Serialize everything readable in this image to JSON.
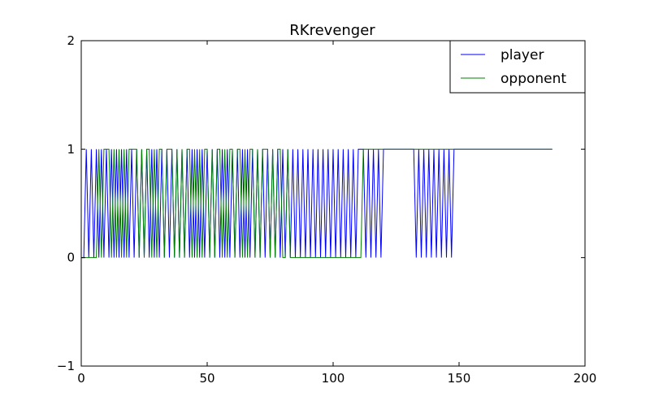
{
  "chart_data": {
    "type": "line",
    "title": "RKrevenger",
    "xlabel": "",
    "ylabel": "",
    "xlim": [
      0,
      200
    ],
    "ylim": [
      -1,
      2
    ],
    "x_ticks": [
      0,
      50,
      100,
      150,
      200
    ],
    "y_ticks": [
      -1,
      0,
      1,
      2
    ],
    "x_tick_labels": [
      "0",
      "50",
      "100",
      "150",
      "200"
    ],
    "y_tick_labels": [
      "−1",
      "0",
      "1",
      "2"
    ],
    "grid": false,
    "legend_position": "top-right",
    "series": [
      {
        "name": "player",
        "color": "#0000ff",
        "x": [
          0,
          1,
          2,
          3,
          4,
          5,
          6,
          7,
          8,
          9,
          10,
          11,
          12,
          13,
          14,
          15,
          16,
          17,
          18,
          19,
          20,
          21,
          22,
          23,
          24,
          25,
          26,
          27,
          28,
          29,
          30,
          31,
          32,
          33,
          34,
          35,
          36,
          37,
          38,
          39,
          40,
          41,
          42,
          43,
          44,
          45,
          46,
          47,
          48,
          49,
          50,
          51,
          52,
          53,
          54,
          55,
          56,
          57,
          58,
          59,
          60,
          61,
          62,
          63,
          64,
          65,
          66,
          67,
          68,
          69,
          70,
          71,
          72,
          73,
          74,
          75,
          76,
          77,
          78,
          79,
          80,
          81,
          82,
          83,
          84,
          85,
          86,
          87,
          88,
          89,
          90,
          91,
          92,
          93,
          94,
          95,
          96,
          97,
          98,
          99,
          100,
          101,
          102,
          103,
          104,
          105,
          106,
          107,
          108,
          109,
          110,
          111,
          112,
          113,
          114,
          115,
          116,
          117,
          118,
          119,
          120,
          121,
          122,
          123,
          124,
          125,
          126,
          127,
          128,
          129,
          130,
          131,
          132,
          133,
          134,
          135,
          136,
          137,
          138,
          139,
          140,
          141,
          142,
          143,
          144,
          145,
          146,
          147,
          148,
          149,
          150,
          151,
          152,
          153,
          154,
          155,
          156,
          157,
          158,
          159,
          160,
          161,
          162,
          163,
          164,
          165,
          166,
          167,
          168,
          169,
          170,
          171,
          172,
          173,
          174,
          175,
          176,
          177,
          178,
          179,
          180,
          181,
          182,
          183,
          184,
          185,
          186,
          187
        ],
        "y": [
          0,
          0,
          1,
          0,
          1,
          0,
          1,
          0,
          1,
          0,
          1,
          0,
          1,
          0,
          1,
          0,
          1,
          0,
          1,
          0,
          1,
          0,
          1,
          0,
          1,
          0,
          1,
          0,
          1,
          0,
          1,
          0,
          1,
          0,
          1,
          0,
          1,
          0,
          1,
          0,
          1,
          0,
          1,
          0,
          1,
          0,
          1,
          0,
          1,
          0,
          1,
          0,
          1,
          0,
          1,
          0,
          1,
          0,
          1,
          0,
          1,
          0,
          1,
          0,
          1,
          0,
          1,
          0,
          1,
          0,
          1,
          0,
          1,
          0,
          1,
          0,
          1,
          0,
          1,
          0,
          1,
          0,
          1,
          0,
          1,
          0,
          1,
          0,
          1,
          0,
          1,
          0,
          1,
          0,
          1,
          0,
          1,
          0,
          1,
          0,
          1,
          0,
          1,
          0,
          1,
          0,
          1,
          0,
          1,
          0,
          1,
          1,
          1,
          0,
          1,
          0,
          1,
          0,
          1,
          0,
          1,
          1,
          1,
          1,
          1,
          1,
          1,
          1,
          1,
          1,
          1,
          1,
          1,
          0,
          1,
          0,
          1,
          0,
          1,
          0,
          1,
          0,
          1,
          0,
          1,
          0,
          1,
          0,
          1,
          1,
          1,
          1,
          1,
          1,
          1,
          1,
          1,
          1,
          1,
          1,
          1,
          1,
          1,
          1,
          1,
          1,
          1,
          1,
          1,
          1,
          1,
          1,
          1,
          1,
          1,
          1,
          1,
          1,
          1,
          1,
          1,
          1,
          1,
          1,
          1,
          1,
          1,
          1
        ]
      },
      {
        "name": "opponent",
        "color": "#008000",
        "x": [
          0,
          1,
          2,
          3,
          4,
          5,
          6,
          7,
          8,
          9,
          10,
          11,
          12,
          13,
          14,
          15,
          16,
          17,
          18,
          19,
          20,
          21,
          22,
          23,
          24,
          25,
          26,
          27,
          28,
          29,
          30,
          31,
          32,
          33,
          34,
          35,
          36,
          37,
          38,
          39,
          40,
          41,
          42,
          43,
          44,
          45,
          46,
          47,
          48,
          49,
          50,
          51,
          52,
          53,
          54,
          55,
          56,
          57,
          58,
          59,
          60,
          61,
          62,
          63,
          64,
          65,
          66,
          67,
          68,
          69,
          70,
          71,
          72,
          73,
          74,
          75,
          76,
          77,
          78,
          79,
          80,
          81,
          82,
          83,
          84,
          85,
          86,
          87,
          88,
          89,
          90,
          91,
          92,
          93,
          94,
          95,
          96,
          97,
          98,
          99,
          100,
          101,
          102,
          103,
          104,
          105,
          106,
          107,
          108,
          109,
          110,
          111,
          112,
          113,
          114,
          115,
          116,
          117,
          118,
          119,
          120,
          121,
          122,
          123,
          124,
          125,
          126,
          127,
          128,
          129,
          130,
          131,
          132,
          133,
          134,
          135,
          136,
          137,
          138,
          139,
          140,
          141,
          142,
          143,
          144,
          145,
          146,
          147,
          148,
          149,
          150,
          151,
          152,
          153,
          154,
          155,
          156,
          157,
          158,
          159,
          160,
          161,
          162,
          163,
          164,
          165,
          166,
          167,
          168,
          169,
          170,
          171,
          172,
          173,
          174,
          175,
          176,
          177,
          178,
          179,
          180,
          181,
          182,
          183,
          184,
          185,
          186,
          187
        ],
        "y": [
          0,
          0,
          0,
          0,
          0,
          0,
          0,
          1,
          0,
          1,
          1,
          1,
          0,
          1,
          0,
          1,
          0,
          1,
          0,
          1,
          1,
          1,
          1,
          0,
          1,
          0,
          1,
          1,
          0,
          1,
          0,
          1,
          1,
          0,
          1,
          1,
          1,
          0,
          1,
          0,
          1,
          0,
          1,
          1,
          0,
          1,
          0,
          1,
          0,
          1,
          1,
          0,
          1,
          0,
          1,
          1,
          0,
          1,
          0,
          1,
          1,
          0,
          1,
          1,
          0,
          1,
          0,
          1,
          1,
          0,
          1,
          0,
          1,
          1,
          1,
          0,
          1,
          0,
          1,
          1,
          0,
          0,
          1,
          0,
          0,
          0,
          0,
          0,
          0,
          0,
          0,
          0,
          0,
          0,
          0,
          0,
          0,
          0,
          0,
          0,
          0,
          0,
          0,
          0,
          0,
          0,
          0,
          0,
          0,
          0,
          0,
          0,
          1,
          1,
          1,
          1,
          1,
          1,
          1,
          1,
          1,
          1,
          1,
          1,
          1,
          1,
          1,
          1,
          1,
          1,
          1,
          1,
          1,
          1,
          1,
          1,
          1,
          1,
          1,
          1,
          1,
          1,
          1,
          1,
          1,
          1,
          1,
          1,
          1,
          1,
          1,
          1,
          1,
          1,
          1,
          1,
          1,
          1,
          1,
          1,
          1,
          1,
          1,
          1,
          1,
          1,
          1,
          1,
          1,
          1,
          1,
          1,
          1,
          1,
          1,
          1,
          1,
          1,
          1,
          1,
          1,
          1,
          1,
          1,
          1,
          1,
          1,
          1
        ]
      }
    ]
  }
}
